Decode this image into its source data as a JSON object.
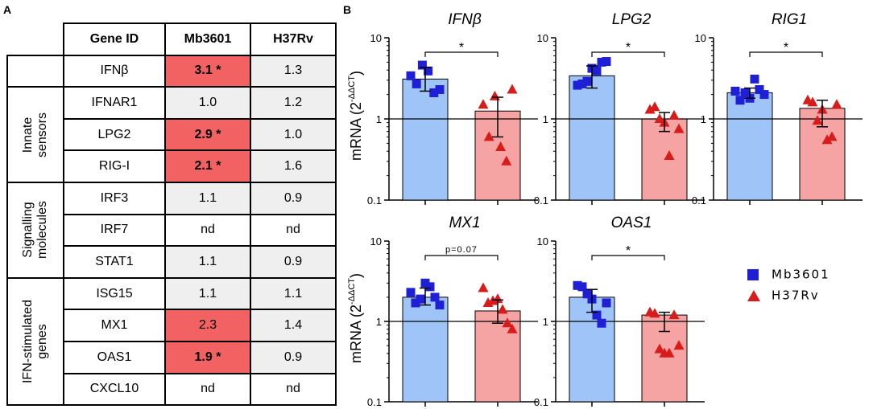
{
  "panel_a": {
    "letter": "A",
    "headers": [
      "Gene ID",
      "Mb3601",
      "H37Rv"
    ],
    "groups": [
      {
        "label": "",
        "rows": 1
      },
      {
        "label": "Innate\nsensors",
        "rows": 3
      },
      {
        "label": "Signalling\nmolecules",
        "rows": 3
      },
      {
        "label": "IFN-stimulated\ngenes",
        "rows": 4
      }
    ],
    "rows": [
      {
        "gene": "IFNβ",
        "mb": "3.1 *",
        "h37": "1.3",
        "highlight": true,
        "bold": true
      },
      {
        "gene": "IFNAR1",
        "mb": "1.0",
        "h37": "1.2",
        "highlight": false,
        "bold": false
      },
      {
        "gene": "LPG2",
        "mb": "2.9 *",
        "h37": "1.0",
        "highlight": true,
        "bold": true
      },
      {
        "gene": "RIG-I",
        "mb": "2.1 *",
        "h37": "1.6",
        "highlight": true,
        "bold": true
      },
      {
        "gene": "IRF3",
        "mb": "1.1",
        "h37": "0.9",
        "highlight": false,
        "bold": false
      },
      {
        "gene": "IRF7",
        "mb": "nd",
        "h37": "nd",
        "highlight": false,
        "bold": false,
        "white": true
      },
      {
        "gene": "STAT1",
        "mb": "1.1",
        "h37": "0.9",
        "highlight": false,
        "bold": false
      },
      {
        "gene": "ISG15",
        "mb": "1.1",
        "h37": "1.1",
        "highlight": false,
        "bold": false
      },
      {
        "gene": "MX1",
        "mb": "2.3",
        "h37": "1.4",
        "highlight": true,
        "bold": false
      },
      {
        "gene": "OAS1",
        "mb": "1.9 *",
        "h37": "0.9",
        "highlight": true,
        "bold": true
      },
      {
        "gene": "CXCL10",
        "mb": "nd",
        "h37": "nd",
        "highlight": false,
        "bold": false,
        "white": true
      }
    ]
  },
  "panel_b": {
    "letter": "B",
    "ylabel": "mRNA (2",
    "ylabel_sup": "-ΔΔCT",
    "ylabel_close": ")",
    "legend": [
      {
        "label": "Mb3601",
        "marker": "square",
        "color": "#1f1fd6"
      },
      {
        "label": "H37Rv",
        "marker": "triangle",
        "color": "#d81b1b"
      }
    ],
    "colors": {
      "mb_bar": "#9fc5f8",
      "h37_bar": "#f6a3a3",
      "mb_point": "#1f1fd6",
      "h37_point": "#d81b1b"
    }
  },
  "chart_data": [
    {
      "type": "bar",
      "title": "IFNβ",
      "yscale": "log",
      "ylim": [
        0.1,
        10
      ],
      "ytick_labels": [
        "0.1",
        "1",
        "10"
      ],
      "categories": [
        "Mb3601",
        "H37Rv"
      ],
      "values": [
        3.1,
        1.25
      ],
      "errors": [
        [
          2.2,
          4.3
        ],
        [
          0.6,
          1.85
        ]
      ],
      "points": [
        [
          3.4,
          2.7,
          4.6,
          3.9,
          2.1,
          2.3
        ],
        [
          1.5,
          0.6,
          1.9,
          0.45,
          0.3,
          2.3
        ]
      ],
      "annotation": "*"
    },
    {
      "type": "bar",
      "title": "LPG2",
      "yscale": "log",
      "ylim": [
        0.1,
        10
      ],
      "ytick_labels": [
        "0.1",
        "1",
        "10"
      ],
      "categories": [
        "Mb3601",
        "H37Rv"
      ],
      "values": [
        3.4,
        1.0
      ],
      "errors": [
        [
          2.4,
          4.5
        ],
        [
          0.7,
          1.2
        ]
      ],
      "points": [
        [
          2.6,
          2.7,
          2.9,
          4.2,
          3.9,
          5.0,
          5.1
        ],
        [
          1.3,
          1.4,
          1.0,
          0.9,
          0.35,
          1.1,
          0.75
        ]
      ],
      "annotation": "*"
    },
    {
      "type": "bar",
      "title": "RIG1",
      "yscale": "log",
      "ylim": [
        0.1,
        10
      ],
      "ytick_labels": [
        "0.1",
        "1",
        "10"
      ],
      "categories": [
        "Mb3601",
        "H37Rv"
      ],
      "values": [
        2.1,
        1.35
      ],
      "errors": [
        [
          1.8,
          2.4
        ],
        [
          0.8,
          1.7
        ]
      ],
      "points": [
        [
          2.2,
          1.7,
          2.1,
          1.8,
          3.1,
          2.3,
          2.0
        ],
        [
          1.7,
          1.6,
          0.95,
          1.3,
          0.55,
          0.6,
          1.5
        ]
      ],
      "annotation": "*"
    },
    {
      "type": "bar",
      "title": "MX1",
      "yscale": "log",
      "ylim": [
        0.1,
        10
      ],
      "ytick_labels": [
        "0.1",
        "1",
        "10"
      ],
      "categories": [
        "Mb3601",
        "H37Rv"
      ],
      "values": [
        2.0,
        1.35
      ],
      "errors": [
        [
          1.6,
          2.6
        ],
        [
          0.95,
          1.85
        ]
      ],
      "points": [
        [
          2.3,
          1.7,
          1.9,
          3.0,
          2.7,
          2.0,
          1.6
        ],
        [
          2.6,
          1.7,
          1.8,
          1.9,
          1.4,
          0.95,
          0.8
        ]
      ],
      "annotation": "p=0.07"
    },
    {
      "type": "bar",
      "title": "OAS1",
      "yscale": "log",
      "ylim": [
        0.1,
        10
      ],
      "ytick_labels": [
        "0.1",
        "1",
        "10"
      ],
      "categories": [
        "Mb3601",
        "H37Rv"
      ],
      "values": [
        2.0,
        1.2
      ],
      "errors": [
        [
          1.3,
          2.5
        ],
        [
          0.75,
          1.3
        ]
      ],
      "points": [
        [
          2.8,
          2.7,
          2.2,
          1.9,
          1.2,
          0.95,
          1.7
        ],
        [
          1.3,
          1.25,
          0.45,
          0.4,
          0.4,
          1.2,
          0.5
        ]
      ],
      "annotation": "*"
    }
  ]
}
